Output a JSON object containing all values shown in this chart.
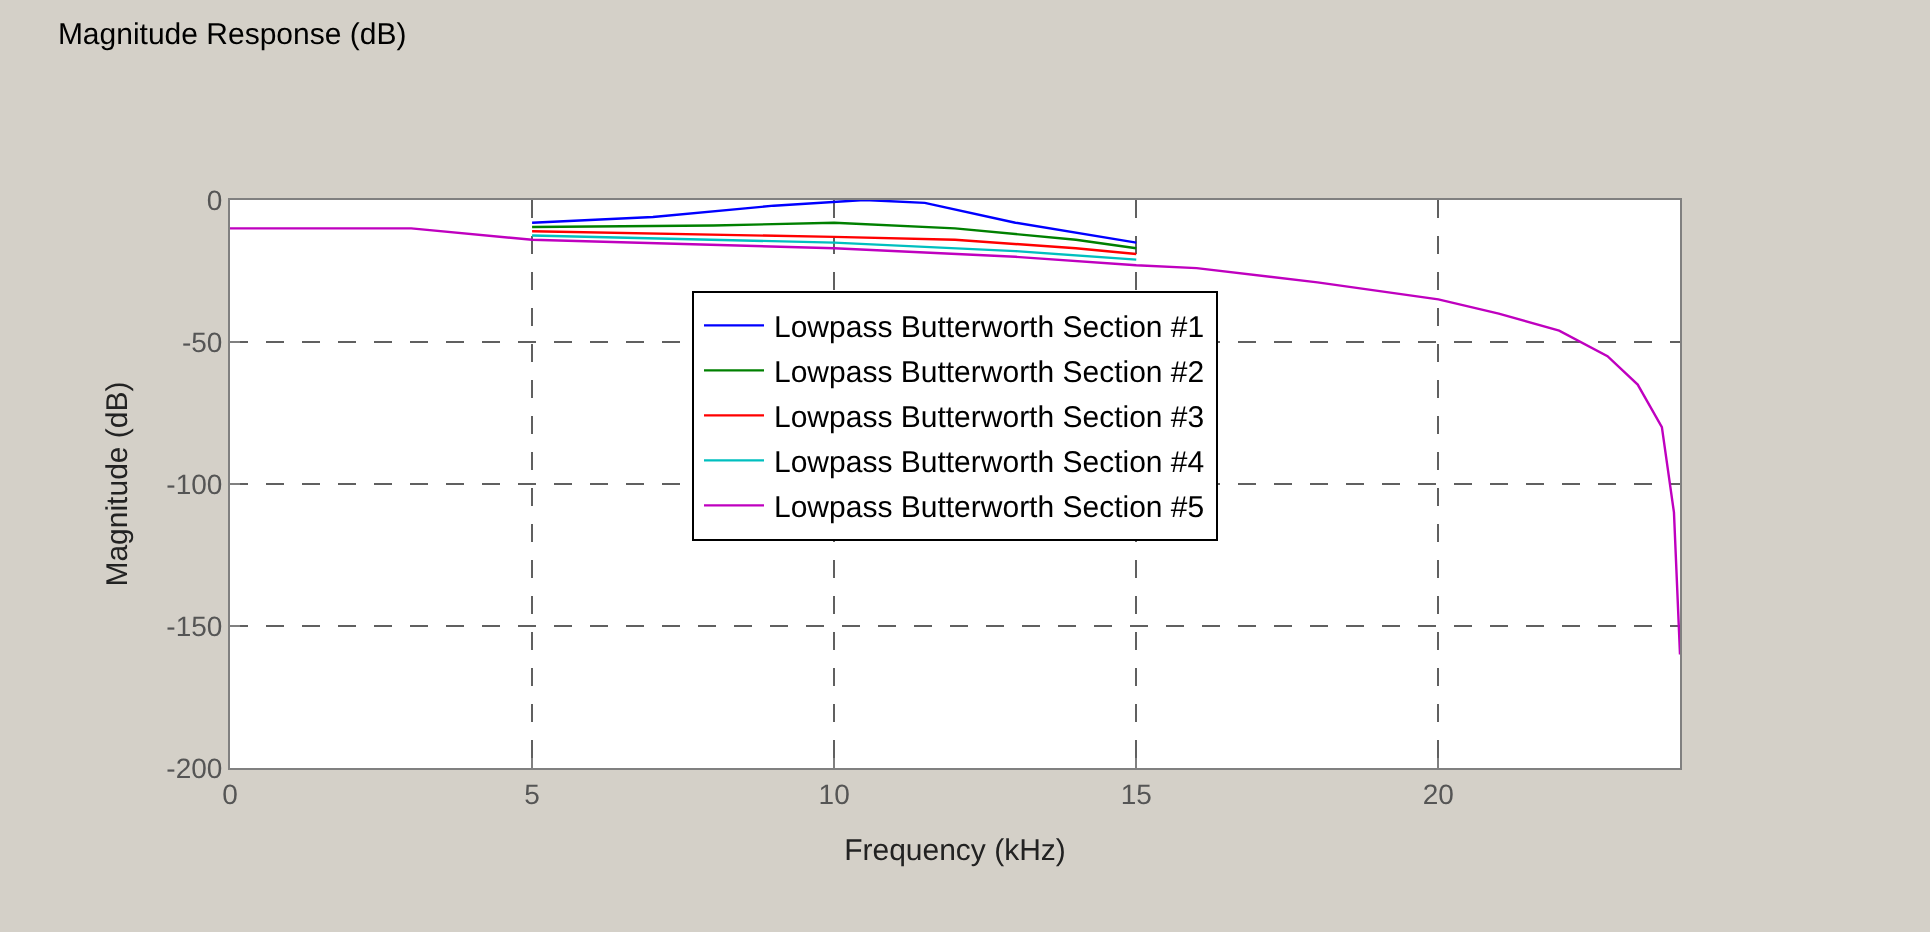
{
  "chart_data": {
    "type": "line",
    "title": "Magnitude Response (dB)",
    "xlabel": "Frequency (kHz)",
    "ylabel": "Magnitude (dB)",
    "xlim": [
      0,
      24
    ],
    "ylim": [
      -200,
      0
    ],
    "xticks": [
      0,
      5,
      10,
      15,
      20
    ],
    "yticks": [
      0,
      -50,
      -100,
      -150,
      -200
    ],
    "grid": true,
    "legend": "top",
    "line_style": "solid",
    "series": [
      {
        "name": "Lowpass Butterworth Section #1",
        "color": "#0000ff",
        "x": [
          5,
          7,
          9,
          10.5,
          11.5,
          13,
          15
        ],
        "values": [
          -8,
          -6,
          -2,
          0,
          -1,
          -8,
          -15
        ]
      },
      {
        "name": "Lowpass Butterworth Section #2",
        "color": "#008000",
        "x": [
          5,
          8,
          10,
          12,
          14,
          15
        ],
        "values": [
          -9.5,
          -9,
          -8,
          -10,
          -14,
          -17
        ]
      },
      {
        "name": "Lowpass Butterworth Section #3",
        "color": "#ff0000",
        "x": [
          5,
          10,
          12,
          14,
          15
        ],
        "values": [
          -11,
          -13,
          -14,
          -17,
          -19
        ]
      },
      {
        "name": "Lowpass Butterworth Section #4",
        "color": "#00bfbf",
        "x": [
          5,
          10,
          13,
          15
        ],
        "values": [
          -12.5,
          -15,
          -18,
          -21
        ]
      },
      {
        "name": "Lowpass Butterworth Section #5",
        "color": "#bf00bf",
        "x": [
          0,
          3,
          5,
          10,
          13,
          15,
          16,
          18,
          20,
          21,
          22,
          22.8,
          23.3,
          23.7,
          23.9,
          24
        ],
        "values": [
          -10,
          -10,
          -14,
          -17,
          -20,
          -23,
          -24,
          -29,
          -35,
          -40,
          -46,
          -55,
          -65,
          -80,
          -110,
          -160
        ]
      }
    ]
  }
}
